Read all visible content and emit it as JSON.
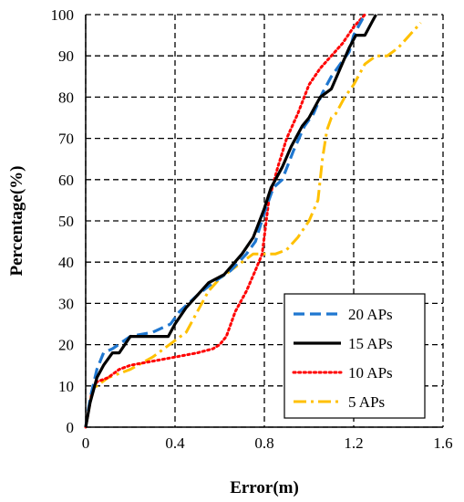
{
  "chart_data": {
    "type": "line",
    "title": "",
    "xlabel": "Error(m)",
    "ylabel": "Percentage(%)",
    "xlim": [
      0,
      1.6
    ],
    "ylim": [
      0,
      100
    ],
    "xticks": [
      "0",
      "0.4",
      "0.8",
      "1.2",
      "1.6"
    ],
    "yticks": [
      "0",
      "10",
      "20",
      "30",
      "40",
      "50",
      "60",
      "70",
      "80",
      "90",
      "100"
    ],
    "grid": "dashed",
    "legend_position": "bottom-right",
    "series": [
      {
        "name": "20 APs",
        "color": "#1f77d0",
        "dash": "long-dash",
        "x": [
          0,
          0.02,
          0.05,
          0.08,
          0.12,
          0.2,
          0.3,
          0.38,
          0.42,
          0.5,
          0.57,
          0.65,
          0.72,
          0.76,
          0.8,
          0.84,
          0.88,
          0.93,
          0.98,
          1.02,
          1.06,
          1.1,
          1.14,
          1.18,
          1.2,
          1.23,
          1.25
        ],
        "y": [
          0,
          7,
          14,
          18,
          19,
          22,
          23,
          25,
          28,
          32,
          35,
          38,
          42,
          45,
          52,
          58,
          60,
          67,
          73,
          76,
          81,
          85,
          88,
          91,
          95,
          98,
          100
        ]
      },
      {
        "name": "15 APs",
        "color": "#000000",
        "dash": "solid",
        "x": [
          0,
          0.02,
          0.05,
          0.08,
          0.12,
          0.15,
          0.2,
          0.3,
          0.37,
          0.4,
          0.45,
          0.5,
          0.55,
          0.62,
          0.7,
          0.75,
          0.8,
          0.83,
          0.88,
          0.92,
          0.97,
          1.0,
          1.05,
          1.1,
          1.14,
          1.18,
          1.21,
          1.25,
          1.28,
          1.3
        ],
        "y": [
          0,
          6,
          12,
          15,
          18,
          18,
          22,
          22,
          22,
          25,
          29,
          32,
          35,
          37,
          42,
          46,
          53,
          58,
          63,
          68,
          73,
          75,
          80,
          82,
          87,
          92,
          95,
          95,
          98,
          100
        ]
      },
      {
        "name": "10 APs",
        "color": "#ff0000",
        "dash": "dotted",
        "x": [
          0,
          0.03,
          0.05,
          0.1,
          0.15,
          0.2,
          0.3,
          0.4,
          0.5,
          0.57,
          0.6,
          0.63,
          0.67,
          0.72,
          0.76,
          0.79,
          0.82,
          0.86,
          0.9,
          0.95,
          1.0,
          1.05,
          1.1,
          1.15,
          1.2,
          1.25
        ],
        "y": [
          0,
          9,
          11,
          12,
          14,
          15,
          16,
          17,
          18,
          19,
          20,
          22,
          28,
          33,
          38,
          42,
          55,
          63,
          70,
          76,
          83,
          87,
          90,
          93,
          97,
          100
        ]
      },
      {
        "name": "5 APs",
        "color": "#ffc000",
        "dash": "dash-dot",
        "x": [
          0,
          0.03,
          0.05,
          0.1,
          0.2,
          0.3,
          0.35,
          0.4,
          0.45,
          0.5,
          0.55,
          0.6,
          0.65,
          0.7,
          0.75,
          0.8,
          0.85,
          0.9,
          0.95,
          1.0,
          1.04,
          1.06,
          1.08,
          1.1,
          1.12,
          1.16,
          1.2,
          1.25,
          1.3,
          1.35,
          1.4,
          1.45,
          1.5
        ],
        "y": [
          0,
          9,
          10,
          12,
          14,
          17,
          19,
          21,
          23,
          28,
          33,
          36,
          38,
          40,
          42,
          42,
          42,
          43,
          46,
          50,
          55,
          65,
          72,
          75,
          76,
          80,
          83,
          88,
          90,
          90,
          92,
          95,
          98
        ]
      }
    ]
  }
}
